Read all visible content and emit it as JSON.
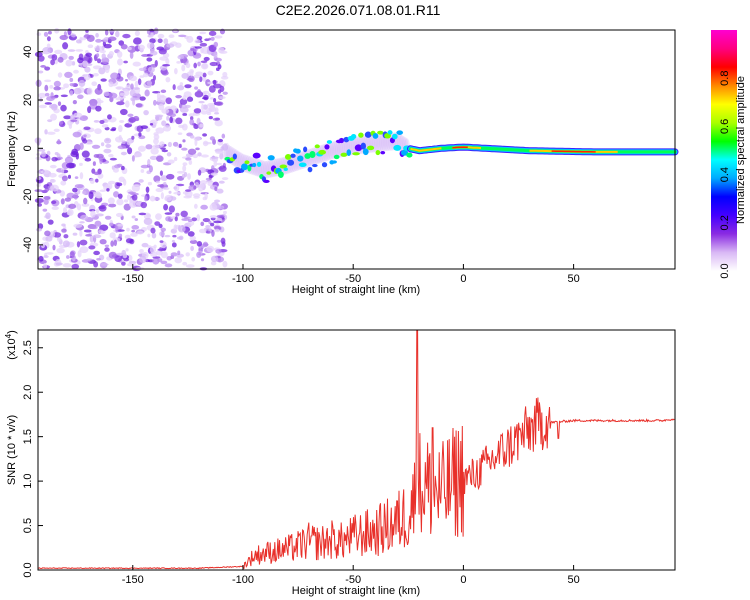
{
  "title": "C2E2.2026.071.08.01.R11",
  "chart_data": [
    {
      "type": "heatmap",
      "name": "spectrogram",
      "xlabel": "Height of straight line (km)",
      "ylabel": "Frequency (Hz)",
      "xlim": [
        -193,
        96
      ],
      "ylim": [
        -50,
        49
      ],
      "x_ticks": [
        -150,
        -100,
        -50,
        0,
        50
      ],
      "x_tick_labels": [
        "-150",
        "-100",
        "-50",
        "0",
        "50"
      ],
      "y_ticks": [
        -40,
        -20,
        0,
        20,
        40
      ],
      "y_tick_labels": [
        "-40",
        "-20",
        "0",
        "20",
        "40"
      ],
      "noise_region_km": [
        -193,
        -108
      ],
      "track": [
        {
          "x": -107,
          "y": -2
        },
        {
          "x": -100,
          "y": -6
        },
        {
          "x": -90,
          "y": -9
        },
        {
          "x": -80,
          "y": -7
        },
        {
          "x": -70,
          "y": -4
        },
        {
          "x": -60,
          "y": -1
        },
        {
          "x": -50,
          "y": 1
        },
        {
          "x": -40,
          "y": 2
        },
        {
          "x": -30,
          "y": 3
        },
        {
          "x": -25,
          "y": 0
        },
        {
          "x": -20,
          "y": -1
        },
        {
          "x": -10,
          "y": 0
        },
        {
          "x": 0,
          "y": 0.5
        },
        {
          "x": 10,
          "y": 0
        },
        {
          "x": 30,
          "y": -1
        },
        {
          "x": 60,
          "y": -1.5
        },
        {
          "x": 96,
          "y": -1.5
        }
      ]
    },
    {
      "type": "colorbar",
      "label": "Normalized spectral amplitude",
      "range": [
        0,
        1
      ],
      "ticks": [
        0.0,
        0.2,
        0.4,
        0.6,
        0.8
      ],
      "tick_labels": [
        "0.0",
        "0.2",
        "0.4",
        "0.6",
        "0.8"
      ],
      "colormap": [
        "#ffffff",
        "#d9b8f5",
        "#8a2be2",
        "#4400ff",
        "#0000ff",
        "#00aaff",
        "#00ffff",
        "#00ff00",
        "#aaff00",
        "#ffff00",
        "#ff8800",
        "#ff0000",
        "#ff0080",
        "#ff00d0"
      ]
    },
    {
      "type": "line",
      "name": "snr",
      "xlabel": "Height of straight line (km)",
      "ylabel": "SNR (10 * v/v)",
      "y_multiplier": "(x10",
      "y_multiplier_exp": "4",
      "xlim": [
        -193,
        96
      ],
      "ylim": [
        0,
        2.7
      ],
      "x_ticks": [
        -150,
        -100,
        -50,
        0,
        50
      ],
      "x_tick_labels": [
        "-150",
        "-100",
        "-50",
        "0",
        "50"
      ],
      "y_ticks": [
        0.0,
        0.5,
        1.0,
        1.5,
        2.0,
        2.5
      ],
      "y_tick_labels": [
        "0.0",
        "0.5",
        "1.0",
        "1.5",
        "2.0",
        "2.5"
      ],
      "series": [
        {
          "name": "SNR",
          "color": "#e8302a",
          "x": [
            -193,
            -150,
            -120,
            -110,
            -100,
            -95,
            -90,
            -85,
            -80,
            -75,
            -70,
            -65,
            -60,
            -55,
            -50,
            -45,
            -40,
            -35,
            -30,
            -25,
            -22,
            -20,
            -15,
            -10,
            -5,
            0,
            5,
            10,
            15,
            20,
            25,
            30,
            35,
            40,
            50,
            60,
            70,
            80,
            90,
            96
          ],
          "values": [
            0.02,
            0.02,
            0.02,
            0.03,
            0.04,
            0.15,
            0.18,
            0.2,
            0.22,
            0.25,
            0.3,
            0.28,
            0.32,
            0.3,
            0.35,
            0.38,
            0.4,
            0.45,
            0.5,
            0.6,
            0.75,
            0.9,
            0.85,
            0.8,
            0.9,
            1.0,
            1.05,
            1.15,
            1.25,
            1.35,
            1.45,
            1.55,
            1.62,
            1.66,
            1.68,
            1.68,
            1.68,
            1.68,
            1.68,
            1.7
          ]
        }
      ],
      "spike": {
        "x": -21,
        "value": 2.7
      }
    }
  ]
}
